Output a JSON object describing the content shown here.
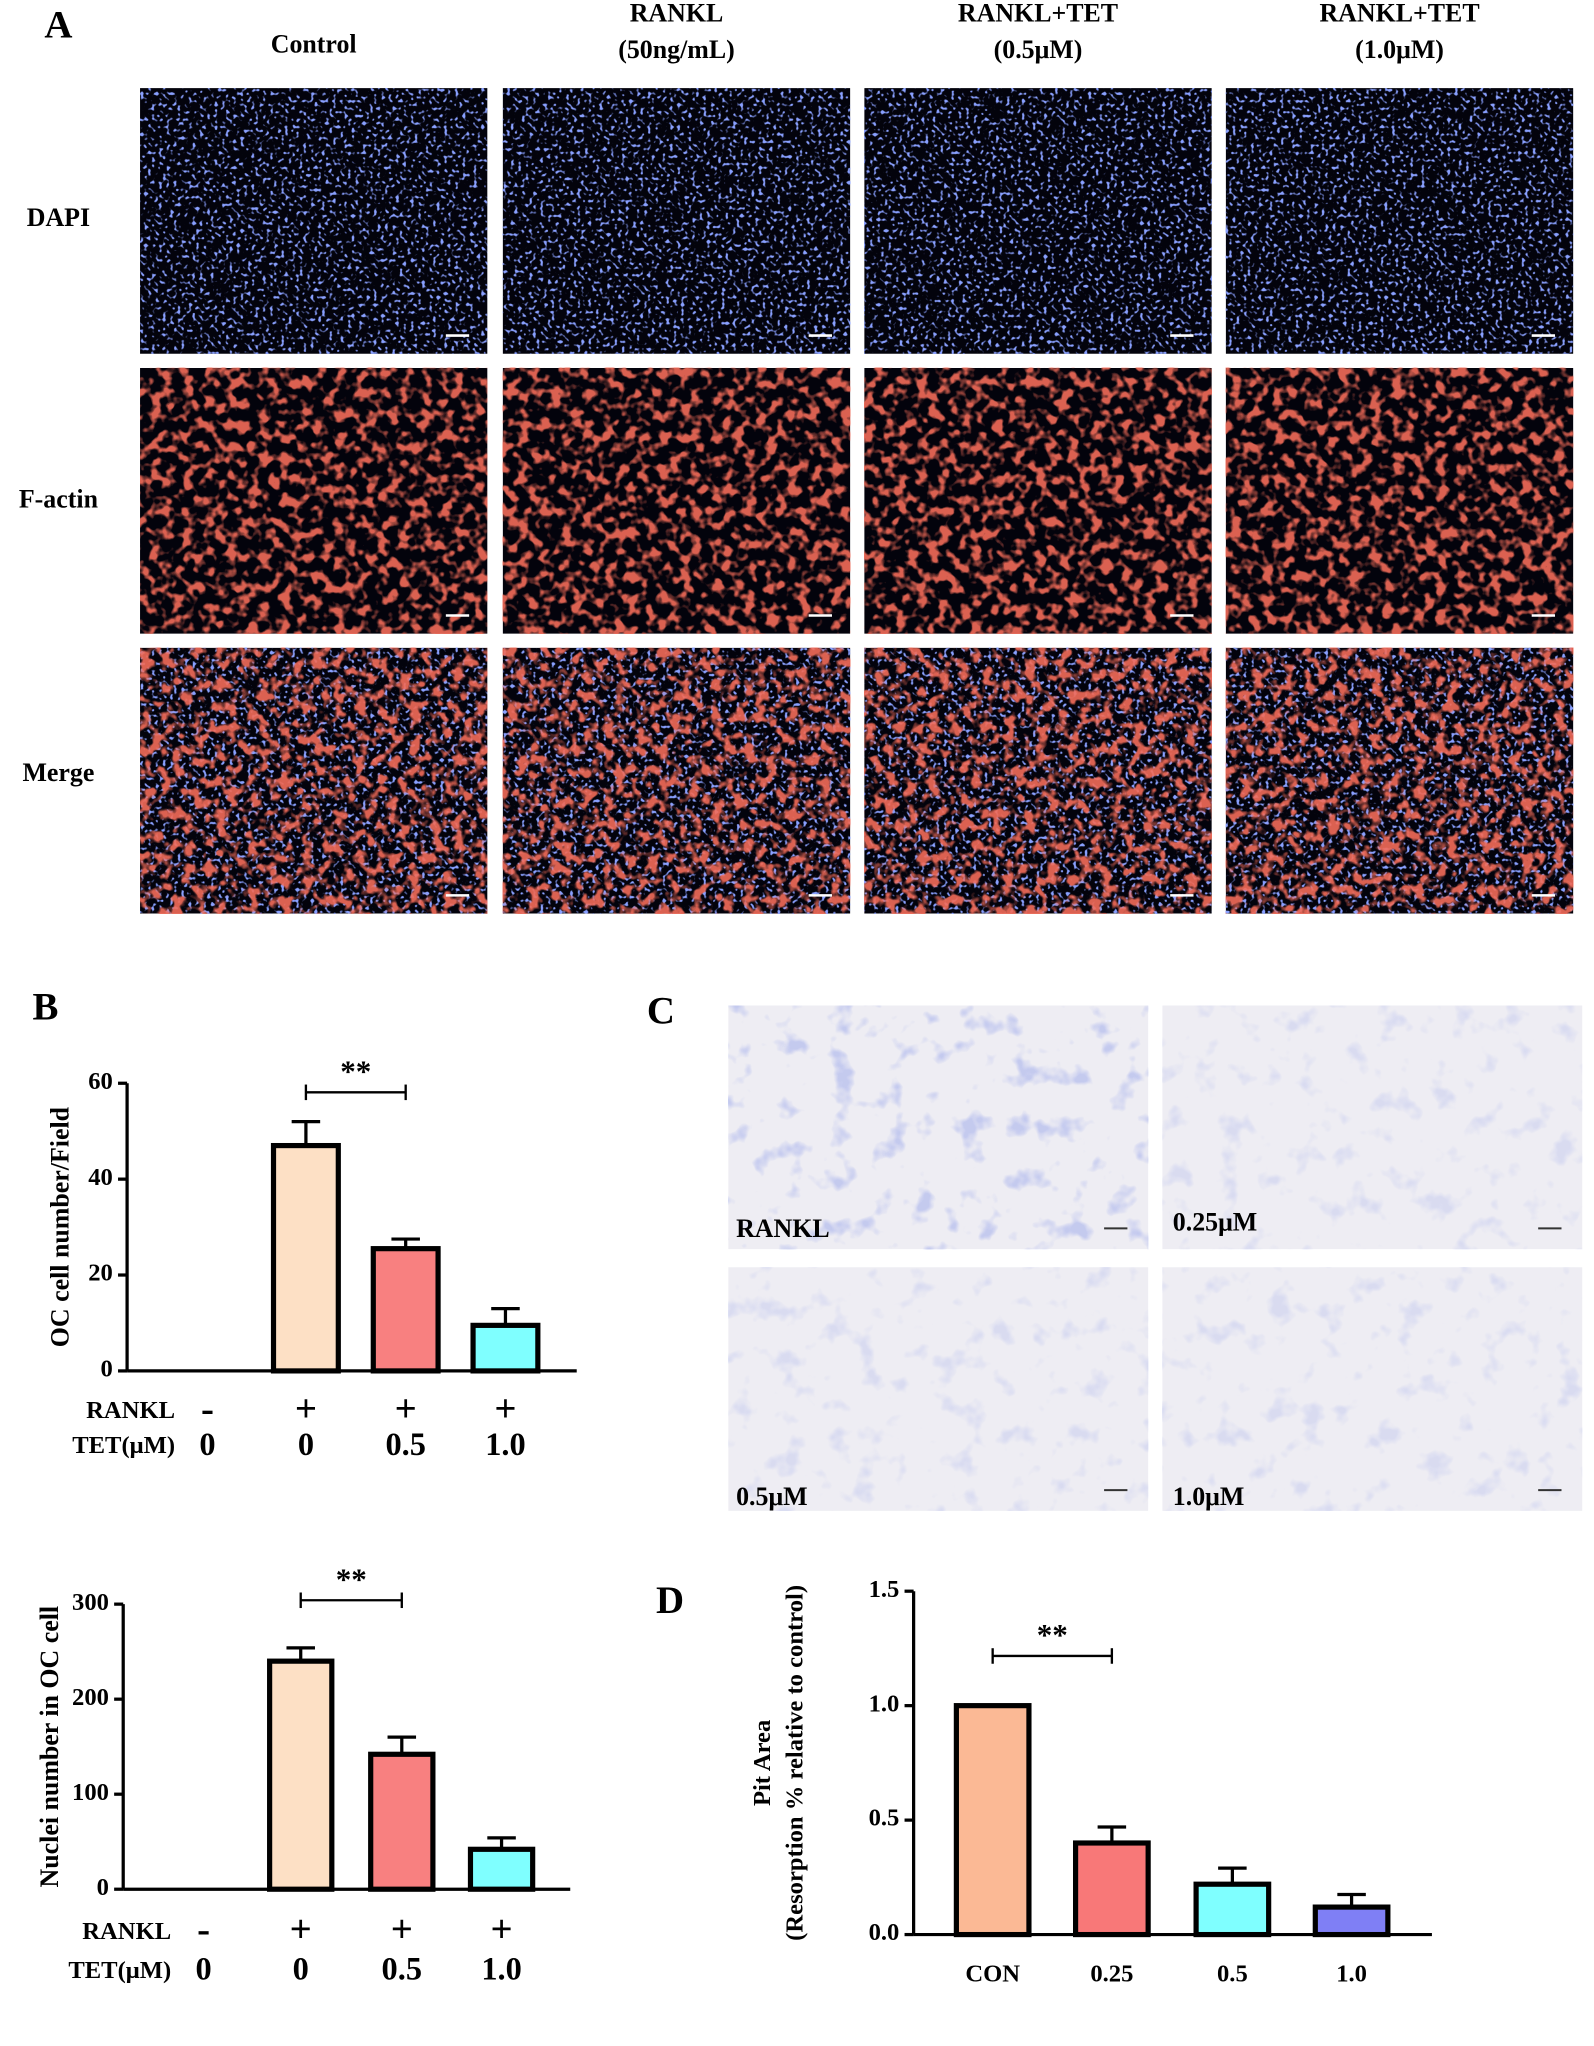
{
  "panels": {
    "a": "A",
    "b": "B",
    "c": "C",
    "d": "D"
  },
  "panel_a": {
    "columns": [
      "Control",
      "RANKL\n(50ng/mL)",
      "RANKL+TET\n(0.5μM)",
      "RANKL+TET\n(1.0μM)"
    ],
    "rows": [
      "DAPI",
      "F-actin",
      "Merge"
    ]
  },
  "panel_c": {
    "labels": [
      "RANKL",
      "0.25μM",
      "0.5μM",
      "1.0μM"
    ]
  },
  "chart_data": [
    {
      "type": "bar",
      "y_label": "OC cell number/Field",
      "values": [
        0,
        47,
        25.5,
        9.5
      ],
      "errors": [
        null,
        5,
        2,
        3.5
      ],
      "colors": [
        "#fde0c5",
        "#fde0c5",
        "#f88080",
        "#7fffff"
      ],
      "ylim": [
        0,
        60
      ],
      "yticks": [
        0,
        20,
        40,
        60
      ],
      "condition_rows": [
        {
          "label": "RANKL",
          "values": [
            "-",
            "+",
            "+",
            "+"
          ]
        },
        {
          "label": "TET(μM)",
          "values": [
            "0",
            "0",
            "0.5",
            "1.0"
          ]
        }
      ],
      "annotation": "**"
    },
    {
      "type": "bar",
      "y_label": "Nuclei number in OC cell",
      "values": [
        0,
        240,
        142,
        42
      ],
      "errors": [
        null,
        14,
        18,
        12
      ],
      "colors": [
        "#fde0c5",
        "#fde0c5",
        "#f88080",
        "#7fffff"
      ],
      "ylim": [
        0,
        300
      ],
      "yticks": [
        0,
        100,
        200,
        300
      ],
      "condition_rows": [
        {
          "label": "RANKL",
          "values": [
            "-",
            "+",
            "+",
            "+"
          ]
        },
        {
          "label": "TET(μM)",
          "values": [
            "0",
            "0",
            "0.5",
            "1.0"
          ]
        }
      ],
      "annotation": "**"
    },
    {
      "type": "bar",
      "y_label": [
        "Pit Area",
        "(Resorption % relative to control)"
      ],
      "categories": [
        "CON",
        "0.25",
        "0.5",
        "1.0"
      ],
      "values": [
        1.0,
        0.4,
        0.22,
        0.12
      ],
      "errors": [
        null,
        0.07,
        0.07,
        0.055
      ],
      "colors": [
        "#fbb995",
        "#f87878",
        "#7fffff",
        "#7f7ff5"
      ],
      "ylim": [
        0,
        1.5
      ],
      "yticks": [
        {
          "value": 0,
          "label": "0.0"
        },
        {
          "value": 0.5,
          "label": "0.5"
        },
        {
          "value": 1,
          "label": "1.0"
        },
        1.5
      ],
      "annotation": "**"
    }
  ]
}
